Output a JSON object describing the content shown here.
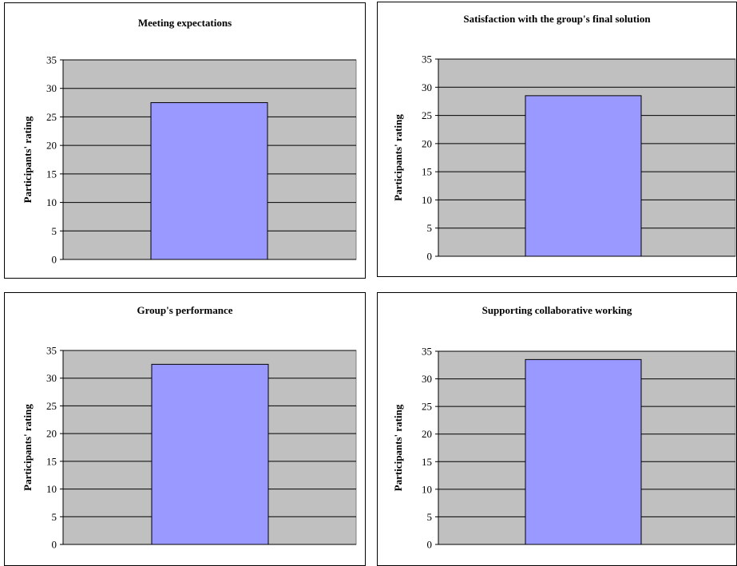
{
  "chart_data": [
    {
      "type": "bar",
      "title": "Meeting expectations",
      "xlabel": "",
      "ylabel": "Participants' rating",
      "categories": [
        ""
      ],
      "values": [
        27.5
      ],
      "ylim": [
        0,
        35
      ],
      "yticks": [
        "0",
        "5",
        "10",
        "15",
        "20",
        "25",
        "30",
        "35"
      ],
      "grid": true,
      "colors": {
        "bar": "#9999ff",
        "plot_bg": "#c0c0c0",
        "grid": "#000000"
      }
    },
    {
      "type": "bar",
      "title": "Satisfaction with the group's final solution",
      "xlabel": "",
      "ylabel": "Participants' rating",
      "categories": [
        ""
      ],
      "values": [
        28.5
      ],
      "ylim": [
        0,
        35
      ],
      "yticks": [
        "0",
        "5",
        "10",
        "15",
        "20",
        "25",
        "30",
        "35"
      ],
      "grid": true,
      "colors": {
        "bar": "#9999ff",
        "plot_bg": "#c0c0c0",
        "grid": "#000000"
      }
    },
    {
      "type": "bar",
      "title": "Group's performance",
      "xlabel": "",
      "ylabel": "Participants' rating",
      "categories": [
        ""
      ],
      "values": [
        32.5
      ],
      "ylim": [
        0,
        35
      ],
      "yticks": [
        "0",
        "5",
        "10",
        "15",
        "20",
        "25",
        "30",
        "35"
      ],
      "grid": true,
      "colors": {
        "bar": "#9999ff",
        "plot_bg": "#c0c0c0",
        "grid": "#000000"
      }
    },
    {
      "type": "bar",
      "title": "Supporting collaborative working",
      "xlabel": "",
      "ylabel": "Participants' rating",
      "categories": [
        ""
      ],
      "values": [
        33.5
      ],
      "ylim": [
        0,
        35
      ],
      "yticks": [
        "0",
        "5",
        "10",
        "15",
        "20",
        "25",
        "30",
        "35"
      ],
      "grid": true,
      "colors": {
        "bar": "#9999ff",
        "plot_bg": "#c0c0c0",
        "grid": "#000000"
      }
    }
  ]
}
